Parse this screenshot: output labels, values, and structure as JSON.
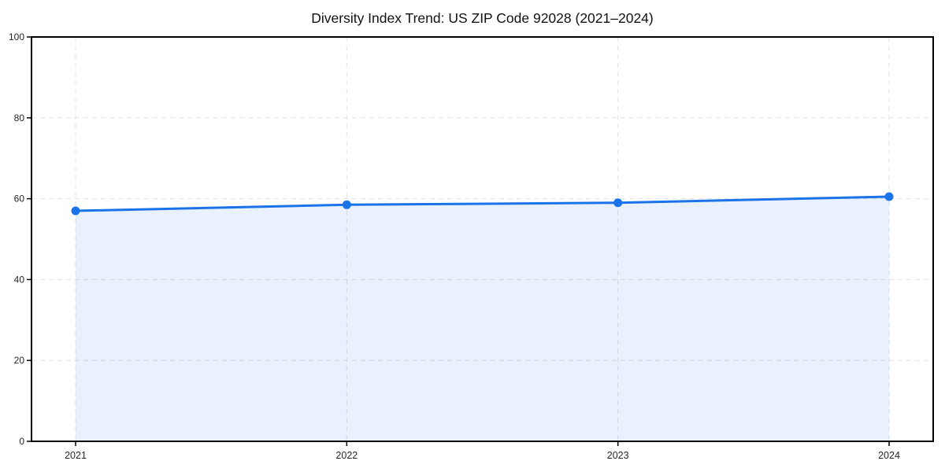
{
  "page": {
    "background": "#ffffff"
  },
  "chart_data": {
    "type": "area",
    "title": "Diversity Index Trend: US ZIP Code 92028 (2021–2024)",
    "categories": [
      "2021",
      "2022",
      "2023",
      "2024"
    ],
    "series": [
      {
        "name": "Diversity Index",
        "values": [
          57,
          58.5,
          59,
          60.5
        ]
      }
    ],
    "xlabel": "",
    "ylabel": "",
    "ylim": [
      0,
      100
    ],
    "yticks": [
      0,
      20,
      40,
      60,
      80,
      100
    ],
    "grid": true,
    "grid_style": "dashed",
    "legend": false,
    "colors": {
      "line": "#1a73e8",
      "marker": "#1a73e8",
      "fill": "#1a73e8",
      "fill_opacity": 0.1,
      "grid": "#e2e2e2",
      "axis": "#000000",
      "tick_label": "#262626",
      "title": "#111111",
      "background": "#ffffff"
    }
  }
}
